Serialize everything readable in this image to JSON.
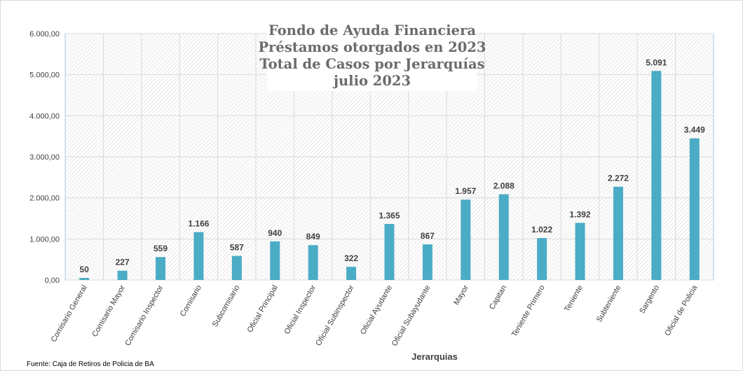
{
  "colors": {
    "bar": "#4BACC6",
    "grid": "#d9d9d9",
    "plot_border": "#a8c8e0",
    "hatch": "#d6d6d6",
    "text": "#404040",
    "title": "#6b6b6b"
  },
  "chart_data": {
    "type": "bar",
    "title_lines": [
      "Fondo de Ayuda Financiera",
      "Préstamos otorgados en 2023",
      "Total de Casos por Jerarquías",
      "julio 2023"
    ],
    "xlabel": "Jerarquias",
    "ylabel": "",
    "ylim": [
      0,
      6000
    ],
    "ytick_values": [
      0,
      1000,
      2000,
      3000,
      4000,
      5000,
      6000
    ],
    "ytick_labels": [
      "0,00",
      "1.000,00",
      "2.000,00",
      "3.000,00",
      "4.000,00",
      "5.000,00",
      "6.000,00"
    ],
    "grid": true,
    "categories": [
      "Comisario General",
      "Comisario Mayor",
      "Comisario Inspector",
      "Comisario",
      "Subcomisario",
      "Oficial Principal",
      "Oficial Inspector",
      "Oficial Subinspector",
      "Oficial Ayudante",
      "Oficial Subayudante",
      "Mayor",
      "Capitan",
      "Teniente Primero",
      "Teniente",
      "Subteniente",
      "Sargento",
      "Oficial de Policia"
    ],
    "values": [
      50,
      227,
      559,
      1166,
      587,
      940,
      849,
      322,
      1365,
      867,
      1957,
      2088,
      1022,
      1392,
      2272,
      5091,
      3449
    ],
    "data_labels": [
      "50",
      "227",
      "559",
      "1.166",
      "587",
      "940",
      "849",
      "322",
      "1.365",
      "867",
      "1.957",
      "2.088",
      "1.022",
      "1.392",
      "2.272",
      "5.091",
      "3.449"
    ]
  },
  "source": "Fuente: Caja de Retiros de Policia de BA"
}
